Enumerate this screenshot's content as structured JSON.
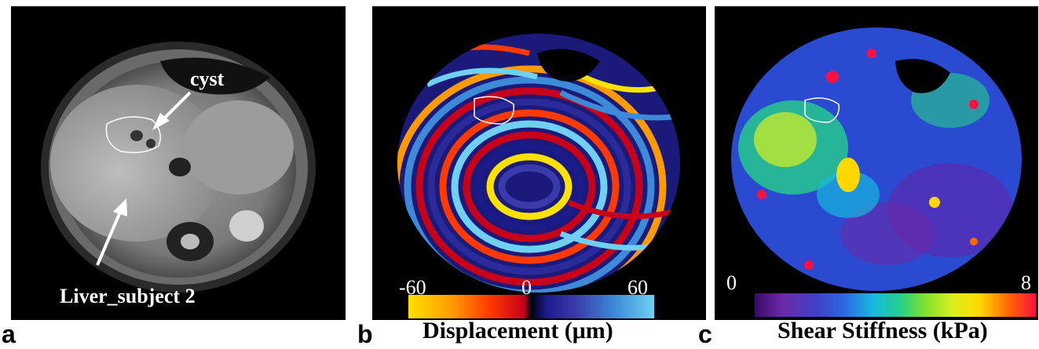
{
  "panels": {
    "a": {
      "letter": "a",
      "cyst_label": "cyst",
      "liver_label": "Liver_subject 2"
    },
    "b": {
      "letter": "b",
      "colorbar": {
        "min_label": "-60",
        "mid_label": "0",
        "max_label": "60",
        "caption": "Displacement (μm)",
        "colors": [
          "#ffe100",
          "#ff3a00",
          "#c8001a",
          "#1a1a8a",
          "#6fd0f2"
        ]
      }
    },
    "c": {
      "letter": "c",
      "colorbar": {
        "min_label": "0",
        "max_label": "8",
        "caption": "Shear Stiffness (kPa)",
        "colors": [
          "#3a0a6a",
          "#2a6ae0",
          "#26d08a",
          "#ffd800",
          "#ff1040"
        ]
      }
    }
  }
}
